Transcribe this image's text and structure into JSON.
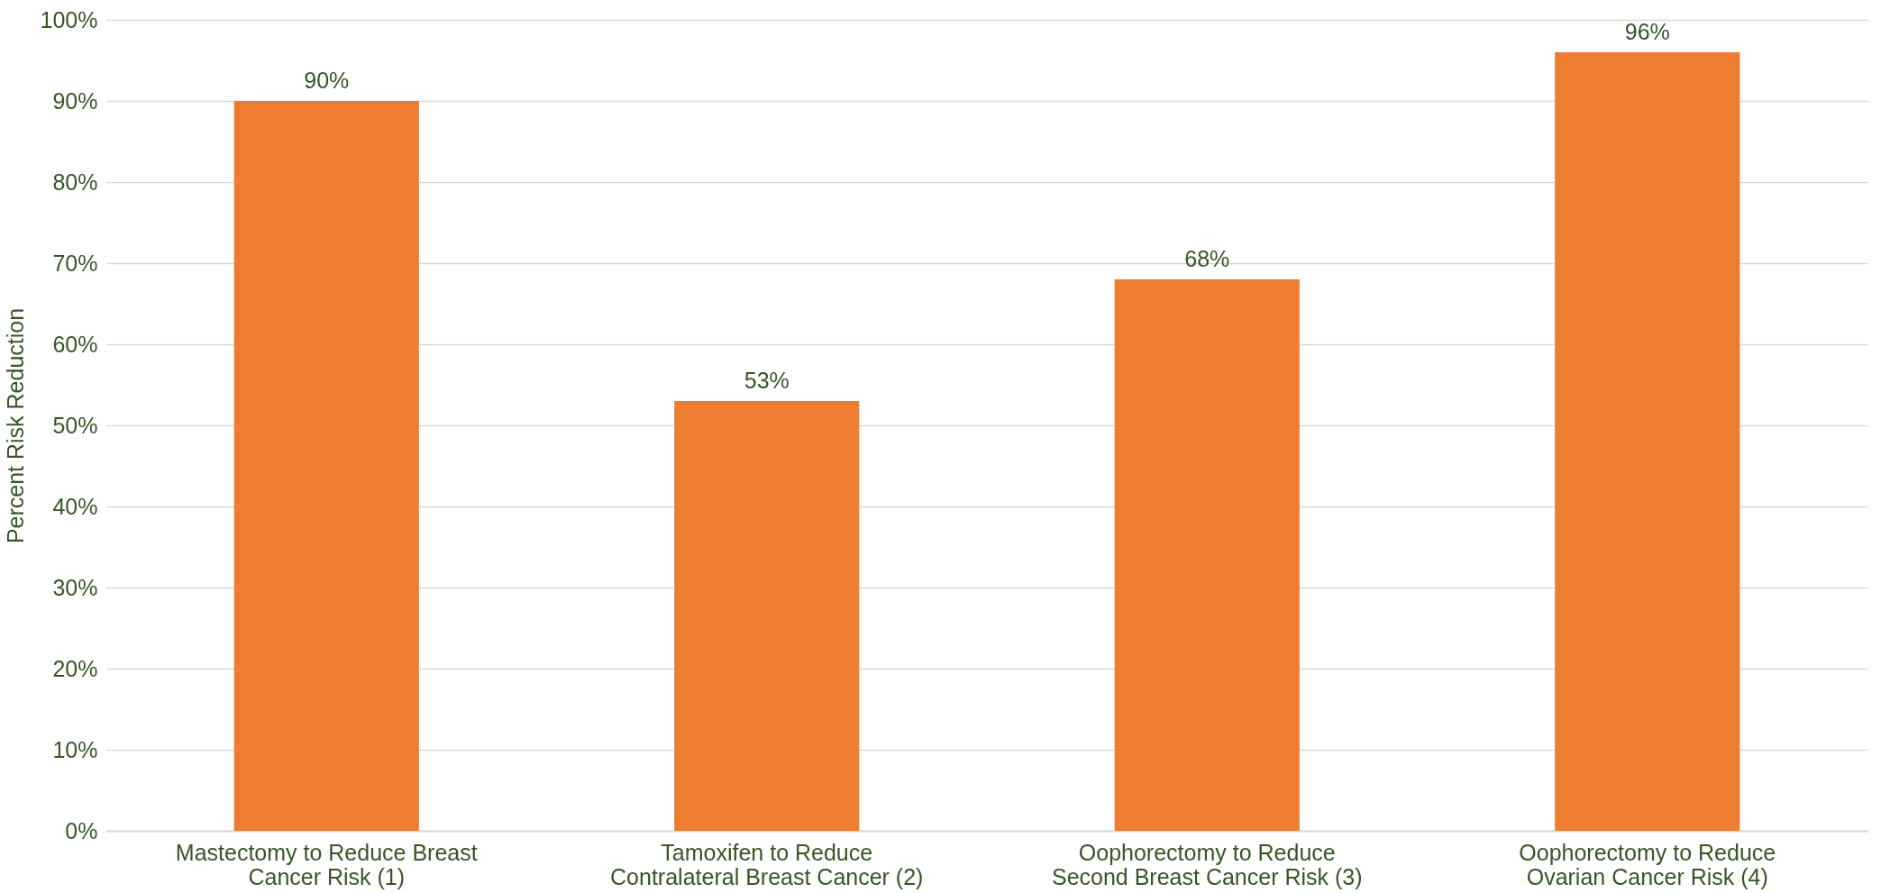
{
  "chart_data": {
    "type": "bar",
    "ylabel": "Percent Risk Reduction",
    "categories": [
      "Mastectomy to Reduce Breast\nCancer Risk (1)",
      "Tamoxifen to Reduce\nContralateral Breast Cancer (2)",
      "Oophorectomy to Reduce\nSecond Breast Cancer Risk (3)",
      "Oophorectomy to Reduce\nOvarian Cancer Risk (4)"
    ],
    "values": [
      90,
      53,
      68,
      96
    ],
    "color": "#ed7d31",
    "value_labels": [
      "90%",
      "53%",
      "68%",
      "96%"
    ],
    "ylim": [
      0,
      100
    ],
    "yticks": [
      {
        "value": 0,
        "label": "0%"
      },
      {
        "value": 10,
        "label": "10%"
      },
      {
        "value": 20,
        "label": "20%"
      },
      {
        "value": 30,
        "label": "30%"
      },
      {
        "value": 40,
        "label": "40%"
      },
      {
        "value": 50,
        "label": "50%"
      },
      {
        "value": 60,
        "label": "60%"
      },
      {
        "value": 70,
        "label": "70%"
      },
      {
        "value": 80,
        "label": "80%"
      },
      {
        "value": 90,
        "label": "90%"
      },
      {
        "value": 100,
        "label": "100%"
      }
    ],
    "grid": "y"
  }
}
